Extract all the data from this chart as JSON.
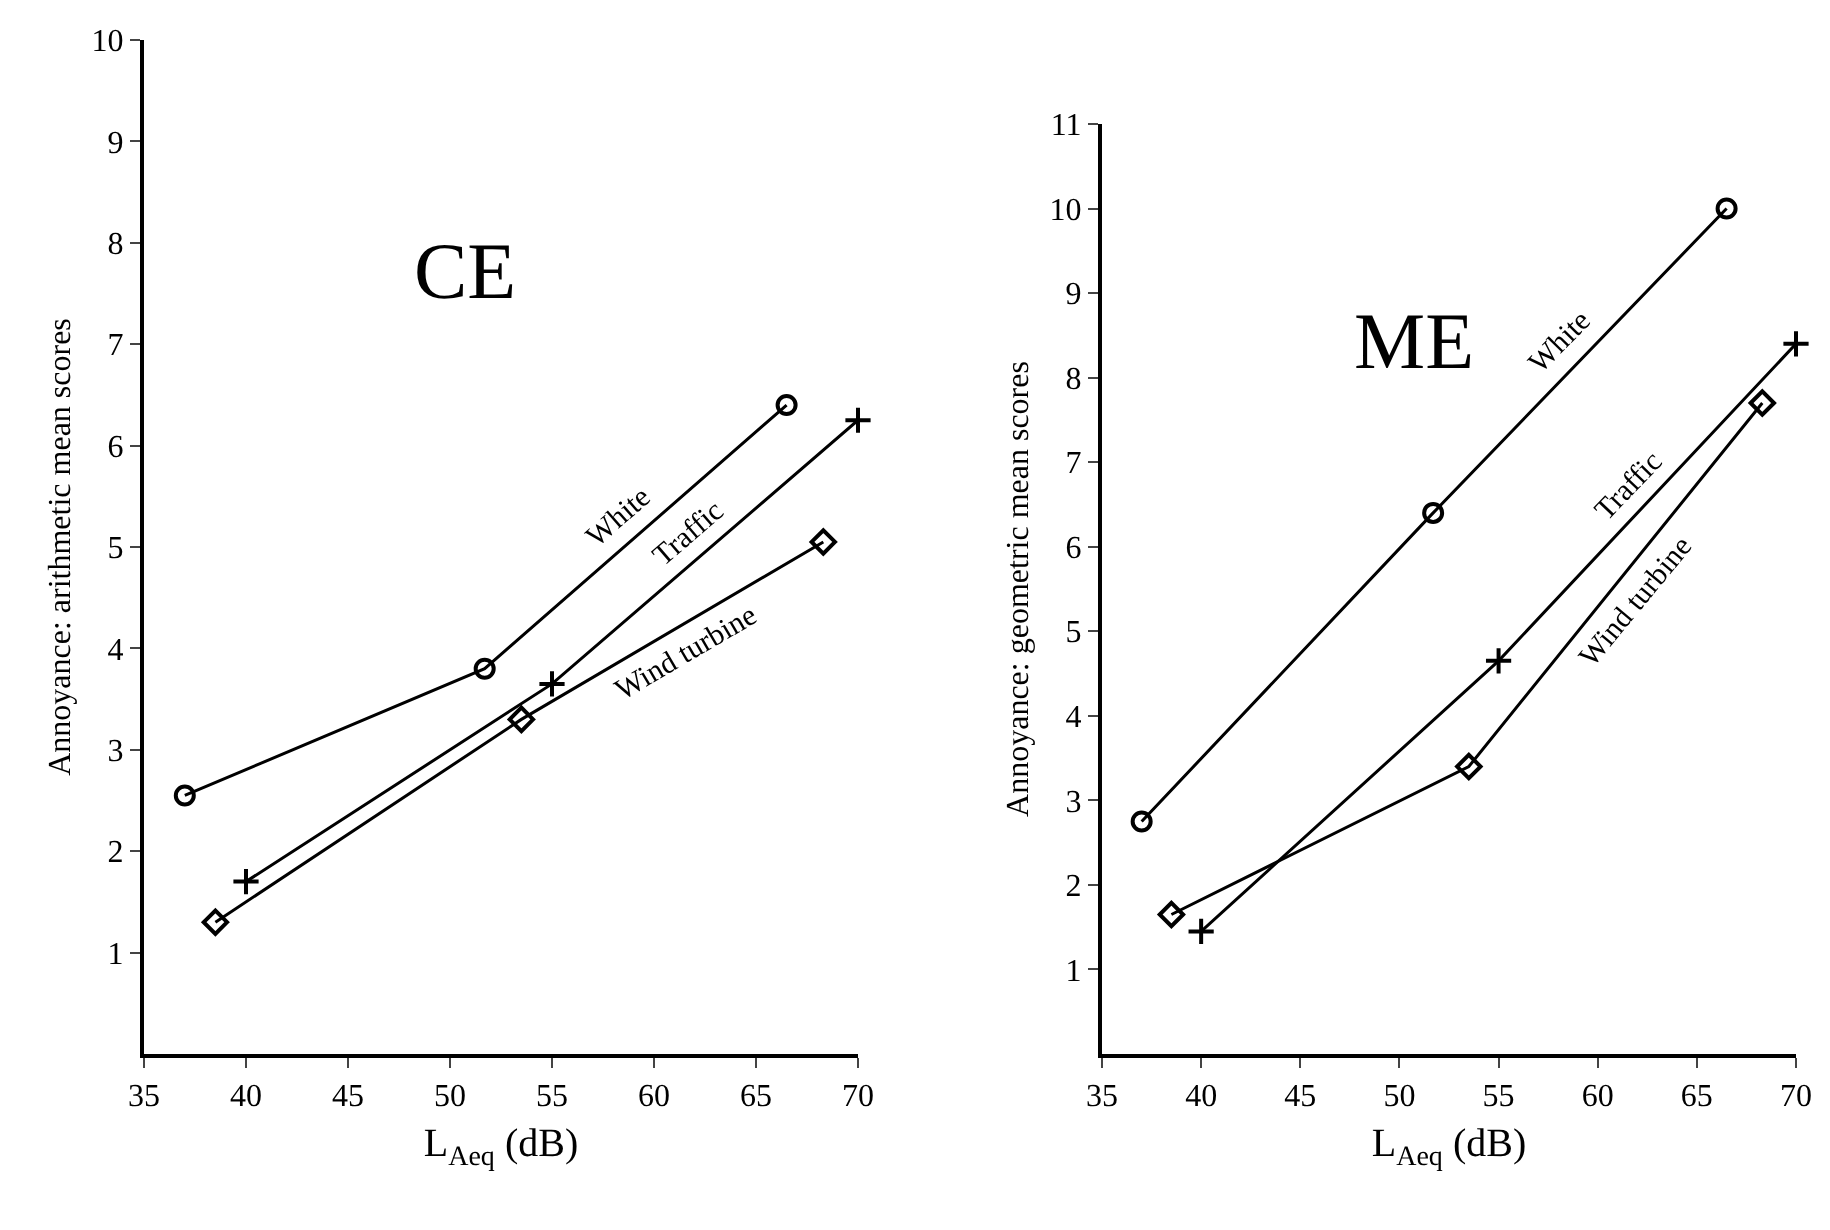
{
  "chart_data": [
    {
      "type": "line",
      "title": "CE",
      "xlabel": "L$_{Aeq}$ (dB)",
      "ylabel": "Annoyance: arithmetic mean scores",
      "xlim": [
        35,
        70
      ],
      "xticks": [
        35,
        40,
        45,
        50,
        55,
        60,
        65,
        70
      ],
      "ylim": [
        0,
        10
      ],
      "yticks": [
        1,
        2,
        3,
        4,
        5,
        6,
        7,
        8,
        9,
        10
      ],
      "grid": false,
      "legend": false,
      "line_style": "solid",
      "series": [
        {
          "name": "White",
          "color": "#000000",
          "marker": "circle",
          "x": [
            37,
            51.7,
            66.5
          ],
          "values": [
            2.55,
            3.8,
            6.4
          ]
        },
        {
          "name": "Traffic",
          "color": "#000000",
          "marker": "cross",
          "x": [
            40,
            55,
            70
          ],
          "values": [
            1.7,
            3.65,
            6.25
          ]
        },
        {
          "name": "Wind turbine",
          "color": "#000000",
          "marker": "diamond",
          "x": [
            38.5,
            53.5,
            68.3
          ],
          "values": [
            1.3,
            3.3,
            5.05
          ]
        }
      ]
    },
    {
      "type": "line",
      "title": "ME",
      "xlabel": "L$_{Aeq}$ (dB)",
      "ylabel": "Annoyance: geometric mean scores",
      "xlim": [
        35,
        70
      ],
      "xticks": [
        35,
        40,
        45,
        50,
        55,
        60,
        65,
        70
      ],
      "ylim": [
        0,
        11
      ],
      "yticks": [
        1,
        2,
        3,
        4,
        5,
        6,
        7,
        8,
        9,
        10,
        11
      ],
      "grid": false,
      "legend": false,
      "line_style": "solid",
      "series": [
        {
          "name": "White",
          "color": "#000000",
          "marker": "circle",
          "x": [
            37,
            51.7,
            66.5
          ],
          "values": [
            2.75,
            6.4,
            10
          ]
        },
        {
          "name": "Traffic",
          "color": "#000000",
          "marker": "cross",
          "x": [
            40,
            55,
            70
          ],
          "values": [
            1.45,
            4.65,
            8.4
          ]
        },
        {
          "name": "Wind turbine",
          "color": "#000000",
          "marker": "diamond",
          "x": [
            38.5,
            53.5,
            68.3
          ],
          "values": [
            1.65,
            3.4,
            7.7
          ]
        }
      ]
    }
  ]
}
